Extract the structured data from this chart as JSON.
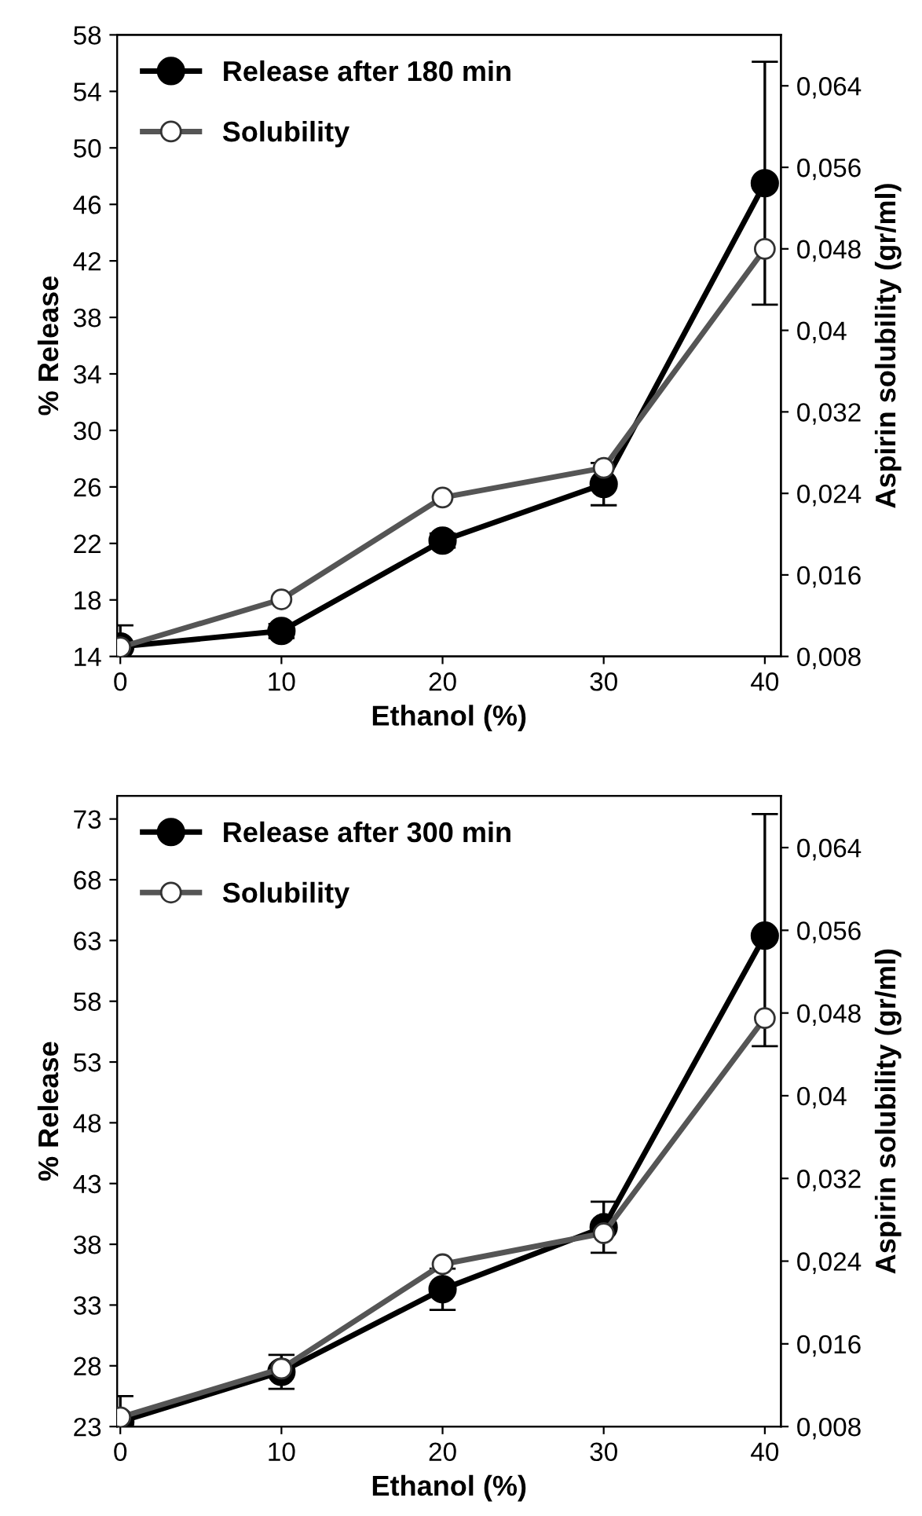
{
  "chart_data": [
    {
      "type": "line",
      "xlabel": "Ethanol (%)",
      "ylabel": "% Release",
      "y2label": "Aspirin solubility (gr/ml)",
      "x": [
        0,
        10,
        20,
        30,
        40
      ],
      "xlim": [
        -0.2,
        41
      ],
      "xticks": [
        0,
        10,
        20,
        30,
        40
      ],
      "ylim": [
        14,
        58
      ],
      "yticks": [
        14,
        18,
        22,
        26,
        30,
        34,
        38,
        42,
        46,
        50,
        54,
        58
      ],
      "y2lim": [
        0.008,
        0.069
      ],
      "y2ticks": [
        {
          "value": 0.008,
          "label": "0,008"
        },
        {
          "value": 0.016,
          "label": "0,016"
        },
        {
          "value": 0.024,
          "label": "0,024"
        },
        {
          "value": 0.032,
          "label": "0,032"
        },
        {
          "value": 0.04,
          "label": "0,04"
        },
        {
          "value": 0.048,
          "label": "0,048"
        },
        {
          "value": 0.056,
          "label": "0,056"
        },
        {
          "value": 0.064,
          "label": "0,064"
        }
      ],
      "legend": "top left",
      "marker": "circle",
      "grid": false,
      "series": [
        {
          "name": "Release after 180 min",
          "color": "#000000",
          "values": [
            14.7,
            15.8,
            22.2,
            26.2,
            47.5
          ],
          "errors": [
            1.5,
            0.5,
            0.5,
            1.5,
            8.6
          ]
        },
        {
          "name": "Solubility",
          "color": "#555555",
          "axis": "y2",
          "values": [
            0.0089,
            0.0136,
            0.0236,
            0.0265,
            0.048
          ]
        }
      ]
    },
    {
      "type": "line",
      "xlabel": "Ethanol (%)",
      "ylabel": "% Release",
      "y2label": "Aspirin solubility (gr/ml)",
      "x": [
        0,
        10,
        20,
        30,
        40
      ],
      "xlim": [
        -0.2,
        41
      ],
      "xticks": [
        0,
        10,
        20,
        30,
        40
      ],
      "ylim": [
        23,
        74.9
      ],
      "yticks": [
        23,
        28,
        33,
        38,
        43,
        48,
        53,
        58,
        63,
        68,
        73
      ],
      "y2lim": [
        0.008,
        0.069
      ],
      "y2ticks": [
        {
          "value": 0.008,
          "label": "0,008"
        },
        {
          "value": 0.016,
          "label": "0,016"
        },
        {
          "value": 0.024,
          "label": "0,024"
        },
        {
          "value": 0.032,
          "label": "0,032"
        },
        {
          "value": 0.04,
          "label": "0,04"
        },
        {
          "value": 0.048,
          "label": "0,048"
        },
        {
          "value": 0.056,
          "label": "0,056"
        },
        {
          "value": 0.064,
          "label": "0,064"
        }
      ],
      "legend": "top left",
      "marker": "circle",
      "grid": false,
      "series": [
        {
          "name": "Release after 300 min",
          "color": "#000000",
          "values": [
            23.4,
            27.5,
            34.3,
            39.4,
            63.4
          ],
          "errors": [
            2.1,
            1.4,
            1.7,
            2.1,
            [
              54.3,
              73.4
            ]
          ]
        },
        {
          "name": "Solubility",
          "color": "#555555",
          "axis": "y2",
          "values": [
            0.0089,
            0.0136,
            0.0237,
            0.0267,
            0.0475
          ]
        }
      ]
    }
  ]
}
